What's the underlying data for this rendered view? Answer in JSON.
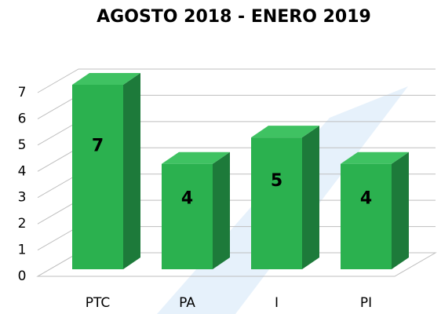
{
  "chart_data": {
    "type": "bar3d",
    "title": "AGOSTO 2018 - ENERO 2019",
    "categories": [
      "PTC",
      "PA",
      "I",
      "PI"
    ],
    "values": [
      7,
      4,
      5,
      4
    ],
    "color": "#2bb14f",
    "ylim": [
      0,
      7
    ],
    "yticks": [
      0,
      1,
      2,
      3,
      4,
      5,
      6,
      7
    ],
    "grid": true
  }
}
